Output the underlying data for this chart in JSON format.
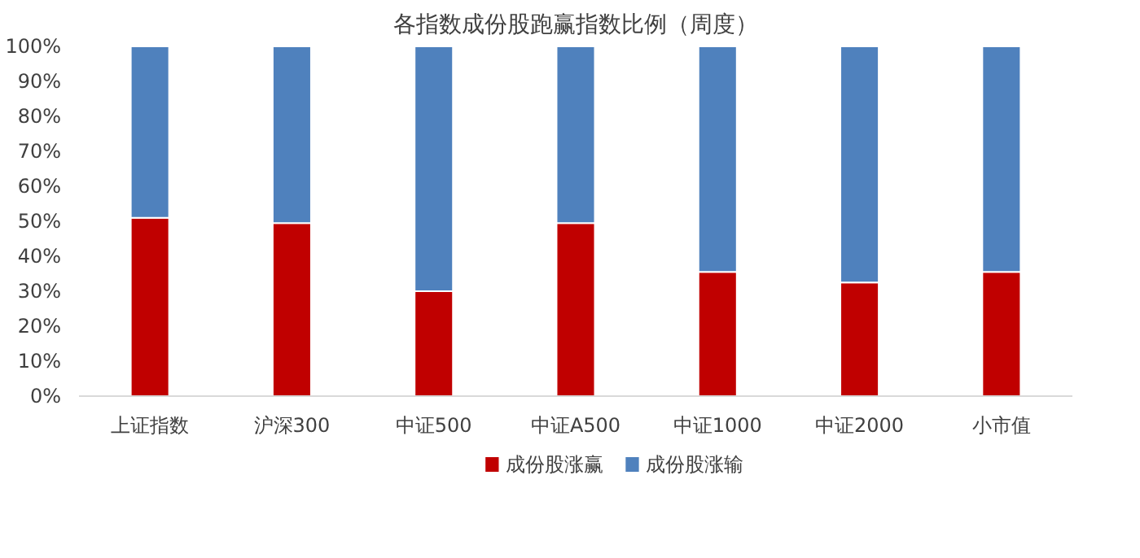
{
  "chart_data": {
    "type": "bar",
    "stacked": true,
    "title": "各指数成份股跑赢指数比例（周度）",
    "categories": [
      "上证指数",
      "沪深300",
      "中证500",
      "中证A500",
      "中证1000",
      "中证2000",
      "小市值"
    ],
    "series": [
      {
        "name": "成份股涨赢",
        "color": "#c00000",
        "values": [
          51,
          49.5,
          30,
          49.5,
          35.5,
          32.5,
          35.5
        ]
      },
      {
        "name": "成份股涨输",
        "color": "#4f81bd",
        "values": [
          49,
          50.5,
          70,
          50.5,
          64.5,
          67.5,
          64.5
        ]
      }
    ],
    "ylim": [
      0,
      100
    ],
    "yticks": [
      {
        "value": 0,
        "label": "0%"
      },
      {
        "value": 10,
        "label": "10%"
      },
      {
        "value": 20,
        "label": "20%"
      },
      {
        "value": 30,
        "label": "30%"
      },
      {
        "value": 40,
        "label": "40%"
      },
      {
        "value": 50,
        "label": "50%"
      },
      {
        "value": 60,
        "label": "60%"
      },
      {
        "value": 70,
        "label": "70%"
      },
      {
        "value": 80,
        "label": "80%"
      },
      {
        "value": 90,
        "label": "90%"
      },
      {
        "value": 100,
        "label": "100%"
      }
    ],
    "grid": false,
    "legend": "bottom"
  }
}
